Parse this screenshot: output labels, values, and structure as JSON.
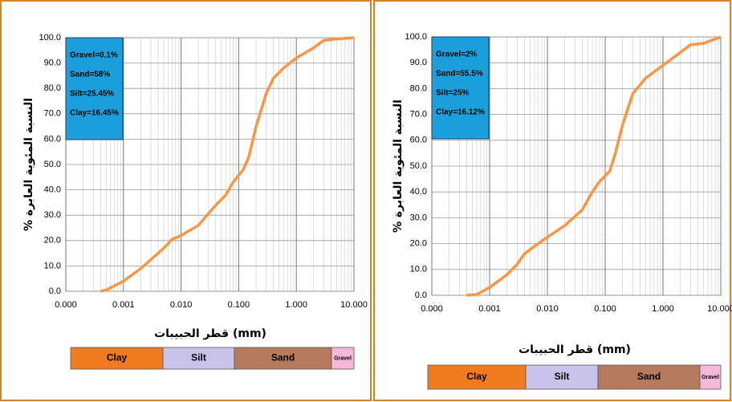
{
  "chart_data": [
    {
      "type": "line",
      "log_x": true,
      "grid": true,
      "minor_grid": true,
      "color": "#f79646",
      "x_label": "قطر الحبيبات (mm)",
      "y_label": "% النسبة المئوية العابرة",
      "x": [
        0.0004,
        0.0005,
        0.001,
        0.002,
        0.004,
        0.005,
        0.007,
        0.01,
        0.02,
        0.04,
        0.06,
        0.08,
        0.12,
        0.15,
        0.2,
        0.3,
        0.4,
        0.6,
        1,
        2,
        3,
        5,
        10
      ],
      "values": [
        0,
        0.5,
        4,
        9,
        15,
        17,
        20.5,
        22,
        26,
        34,
        38,
        43,
        48,
        53,
        65,
        78,
        84,
        88,
        92,
        96,
        99,
        99.5,
        100
      ],
      "xlim": [
        0.0001,
        10
      ],
      "ylim": [
        0,
        100
      ],
      "xticks": [
        {
          "value": 0.0001,
          "label": "0.000"
        },
        {
          "value": 0.001,
          "label": "0.001"
        },
        {
          "value": 0.01,
          "label": "0.010"
        },
        {
          "value": 0.1,
          "label": "0.100"
        },
        {
          "value": 1,
          "label": "1.000"
        },
        {
          "value": 10,
          "label": "10.000"
        }
      ],
      "yticks": [
        {
          "value": 0,
          "label": "0.0"
        },
        {
          "value": 10,
          "label": "10.0"
        },
        {
          "value": 20,
          "label": "20.0"
        },
        {
          "value": 30,
          "label": "30.0"
        },
        {
          "value": 40,
          "label": "40.0"
        },
        {
          "value": 50,
          "label": "50.0"
        },
        {
          "value": 60,
          "label": "60.0"
        },
        {
          "value": 70,
          "label": "70.0"
        },
        {
          "value": 80,
          "label": "80.0"
        },
        {
          "value": 90,
          "label": "90.0"
        },
        {
          "value": 100,
          "label": "100.0"
        }
      ],
      "annotations": [
        "Gravel=0.1%",
        "Sand=58%",
        "Silt=25.45%",
        "Clay=16.45%"
      ],
      "soil_classes": [
        "Clay",
        "Silt",
        "Sand",
        "Gravel"
      ]
    },
    {
      "type": "line",
      "log_x": true,
      "grid": true,
      "minor_grid": true,
      "color": "#f79646",
      "x_label": "قطر الحبيبات (mm)",
      "y_label": "% النسبة المئوية العابرة",
      "x": [
        0.0004,
        0.0006,
        0.001,
        0.002,
        0.003,
        0.004,
        0.006,
        0.01,
        0.02,
        0.04,
        0.06,
        0.08,
        0.12,
        0.15,
        0.2,
        0.3,
        0.5,
        1,
        2,
        3,
        5,
        10
      ],
      "values": [
        0,
        0.3,
        3,
        8,
        12,
        16,
        19,
        22.5,
        27,
        33,
        40,
        44,
        48,
        55,
        66,
        78,
        84,
        89,
        94,
        97,
        97.5,
        100
      ],
      "xlim": [
        0.0001,
        10
      ],
      "ylim": [
        0,
        100
      ],
      "xticks": [
        {
          "value": 0.0001,
          "label": "0.000"
        },
        {
          "value": 0.001,
          "label": "0.001"
        },
        {
          "value": 0.01,
          "label": "0.010"
        },
        {
          "value": 0.1,
          "label": "0.100"
        },
        {
          "value": 1,
          "label": "1.000"
        },
        {
          "value": 10,
          "label": "10.000"
        }
      ],
      "yticks": [
        {
          "value": 0,
          "label": "0.0"
        },
        {
          "value": 10,
          "label": "10.0"
        },
        {
          "value": 20,
          "label": "20.0"
        },
        {
          "value": 30,
          "label": "30.0"
        },
        {
          "value": 40,
          "label": "40.0"
        },
        {
          "value": 50,
          "label": "50.0"
        },
        {
          "value": 60,
          "label": "60.0"
        },
        {
          "value": 70,
          "label": "70.0"
        },
        {
          "value": 80,
          "label": "80.0"
        },
        {
          "value": 90,
          "label": "90.0"
        },
        {
          "value": 100,
          "label": "100.0"
        }
      ],
      "annotations": [
        "Gravel=2%",
        "Sand=55.5%",
        "Silt=25%",
        "Clay=16.12%"
      ],
      "soil_classes": [
        "Clay",
        "Silt",
        "Sand",
        "Gravel"
      ]
    }
  ]
}
